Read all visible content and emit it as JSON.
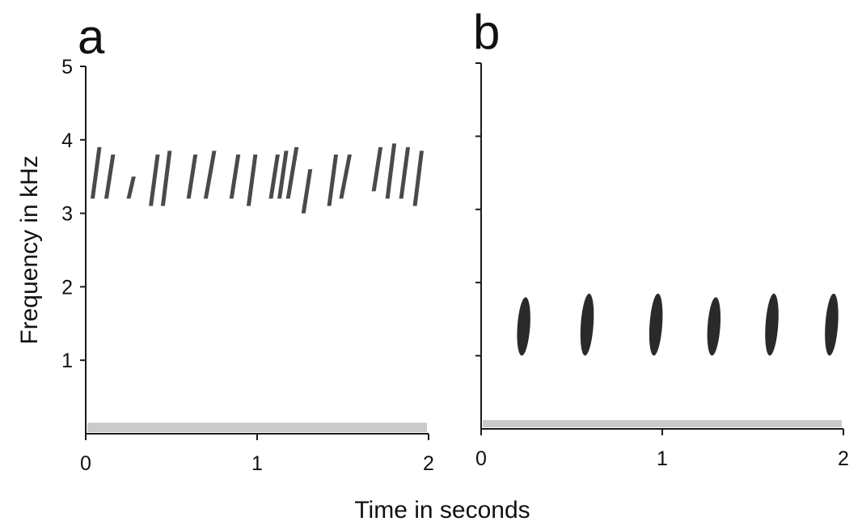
{
  "chart_data": [
    {
      "type": "scatter",
      "panel_label": "a",
      "xlim": [
        0,
        2
      ],
      "ylim": [
        0,
        5
      ],
      "x_ticks": [
        "0",
        "1",
        "2"
      ],
      "y_ticks": [
        "1",
        "2",
        "3",
        "4",
        "5"
      ],
      "syllables": {
        "t_start": [
          0.04,
          0.12,
          0.25,
          0.38,
          0.45,
          0.6,
          0.7,
          0.85,
          0.95,
          1.08,
          1.13,
          1.18,
          1.27,
          1.42,
          1.49,
          1.68,
          1.76,
          1.84,
          1.92
        ],
        "t_end": [
          0.08,
          0.16,
          0.28,
          0.42,
          0.49,
          0.64,
          0.75,
          0.89,
          0.99,
          1.12,
          1.17,
          1.23,
          1.31,
          1.46,
          1.54,
          1.72,
          1.8,
          1.88,
          1.96
        ],
        "f_low_khz": [
          3.2,
          3.2,
          3.2,
          3.1,
          3.1,
          3.2,
          3.2,
          3.2,
          3.1,
          3.2,
          3.2,
          3.2,
          3.0,
          3.1,
          3.2,
          3.3,
          3.2,
          3.2,
          3.1
        ],
        "f_high_khz": [
          3.9,
          3.8,
          3.5,
          3.8,
          3.85,
          3.8,
          3.85,
          3.8,
          3.8,
          3.8,
          3.85,
          3.9,
          3.6,
          3.8,
          3.8,
          3.9,
          3.95,
          3.9,
          3.85
        ]
      },
      "noise_band_khz": [
        0,
        0.15
      ]
    },
    {
      "type": "scatter",
      "panel_label": "b",
      "xlim": [
        0,
        2
      ],
      "ylim": [
        0,
        5
      ],
      "x_ticks": [
        "0",
        "1",
        "2"
      ],
      "y_ticks": [],
      "syllables": {
        "t_start": [
          0.2,
          0.55,
          0.93,
          1.25,
          1.57,
          1.9
        ],
        "t_end": [
          0.27,
          0.62,
          1.0,
          1.32,
          1.64,
          1.97
        ],
        "f_low_khz": [
          1.0,
          1.0,
          1.0,
          1.0,
          1.0,
          1.0
        ],
        "f_high_khz": [
          1.8,
          1.85,
          1.85,
          1.8,
          1.85,
          1.85
        ]
      },
      "noise_band_khz": [
        0,
        0.12
      ]
    }
  ],
  "ylabel": "Frequency in kHz",
  "xlabel": "Time in seconds",
  "colors": {
    "ink": "#1a1a1a",
    "syllable": "#2a2a2a",
    "noise": "#8a8a8a"
  }
}
